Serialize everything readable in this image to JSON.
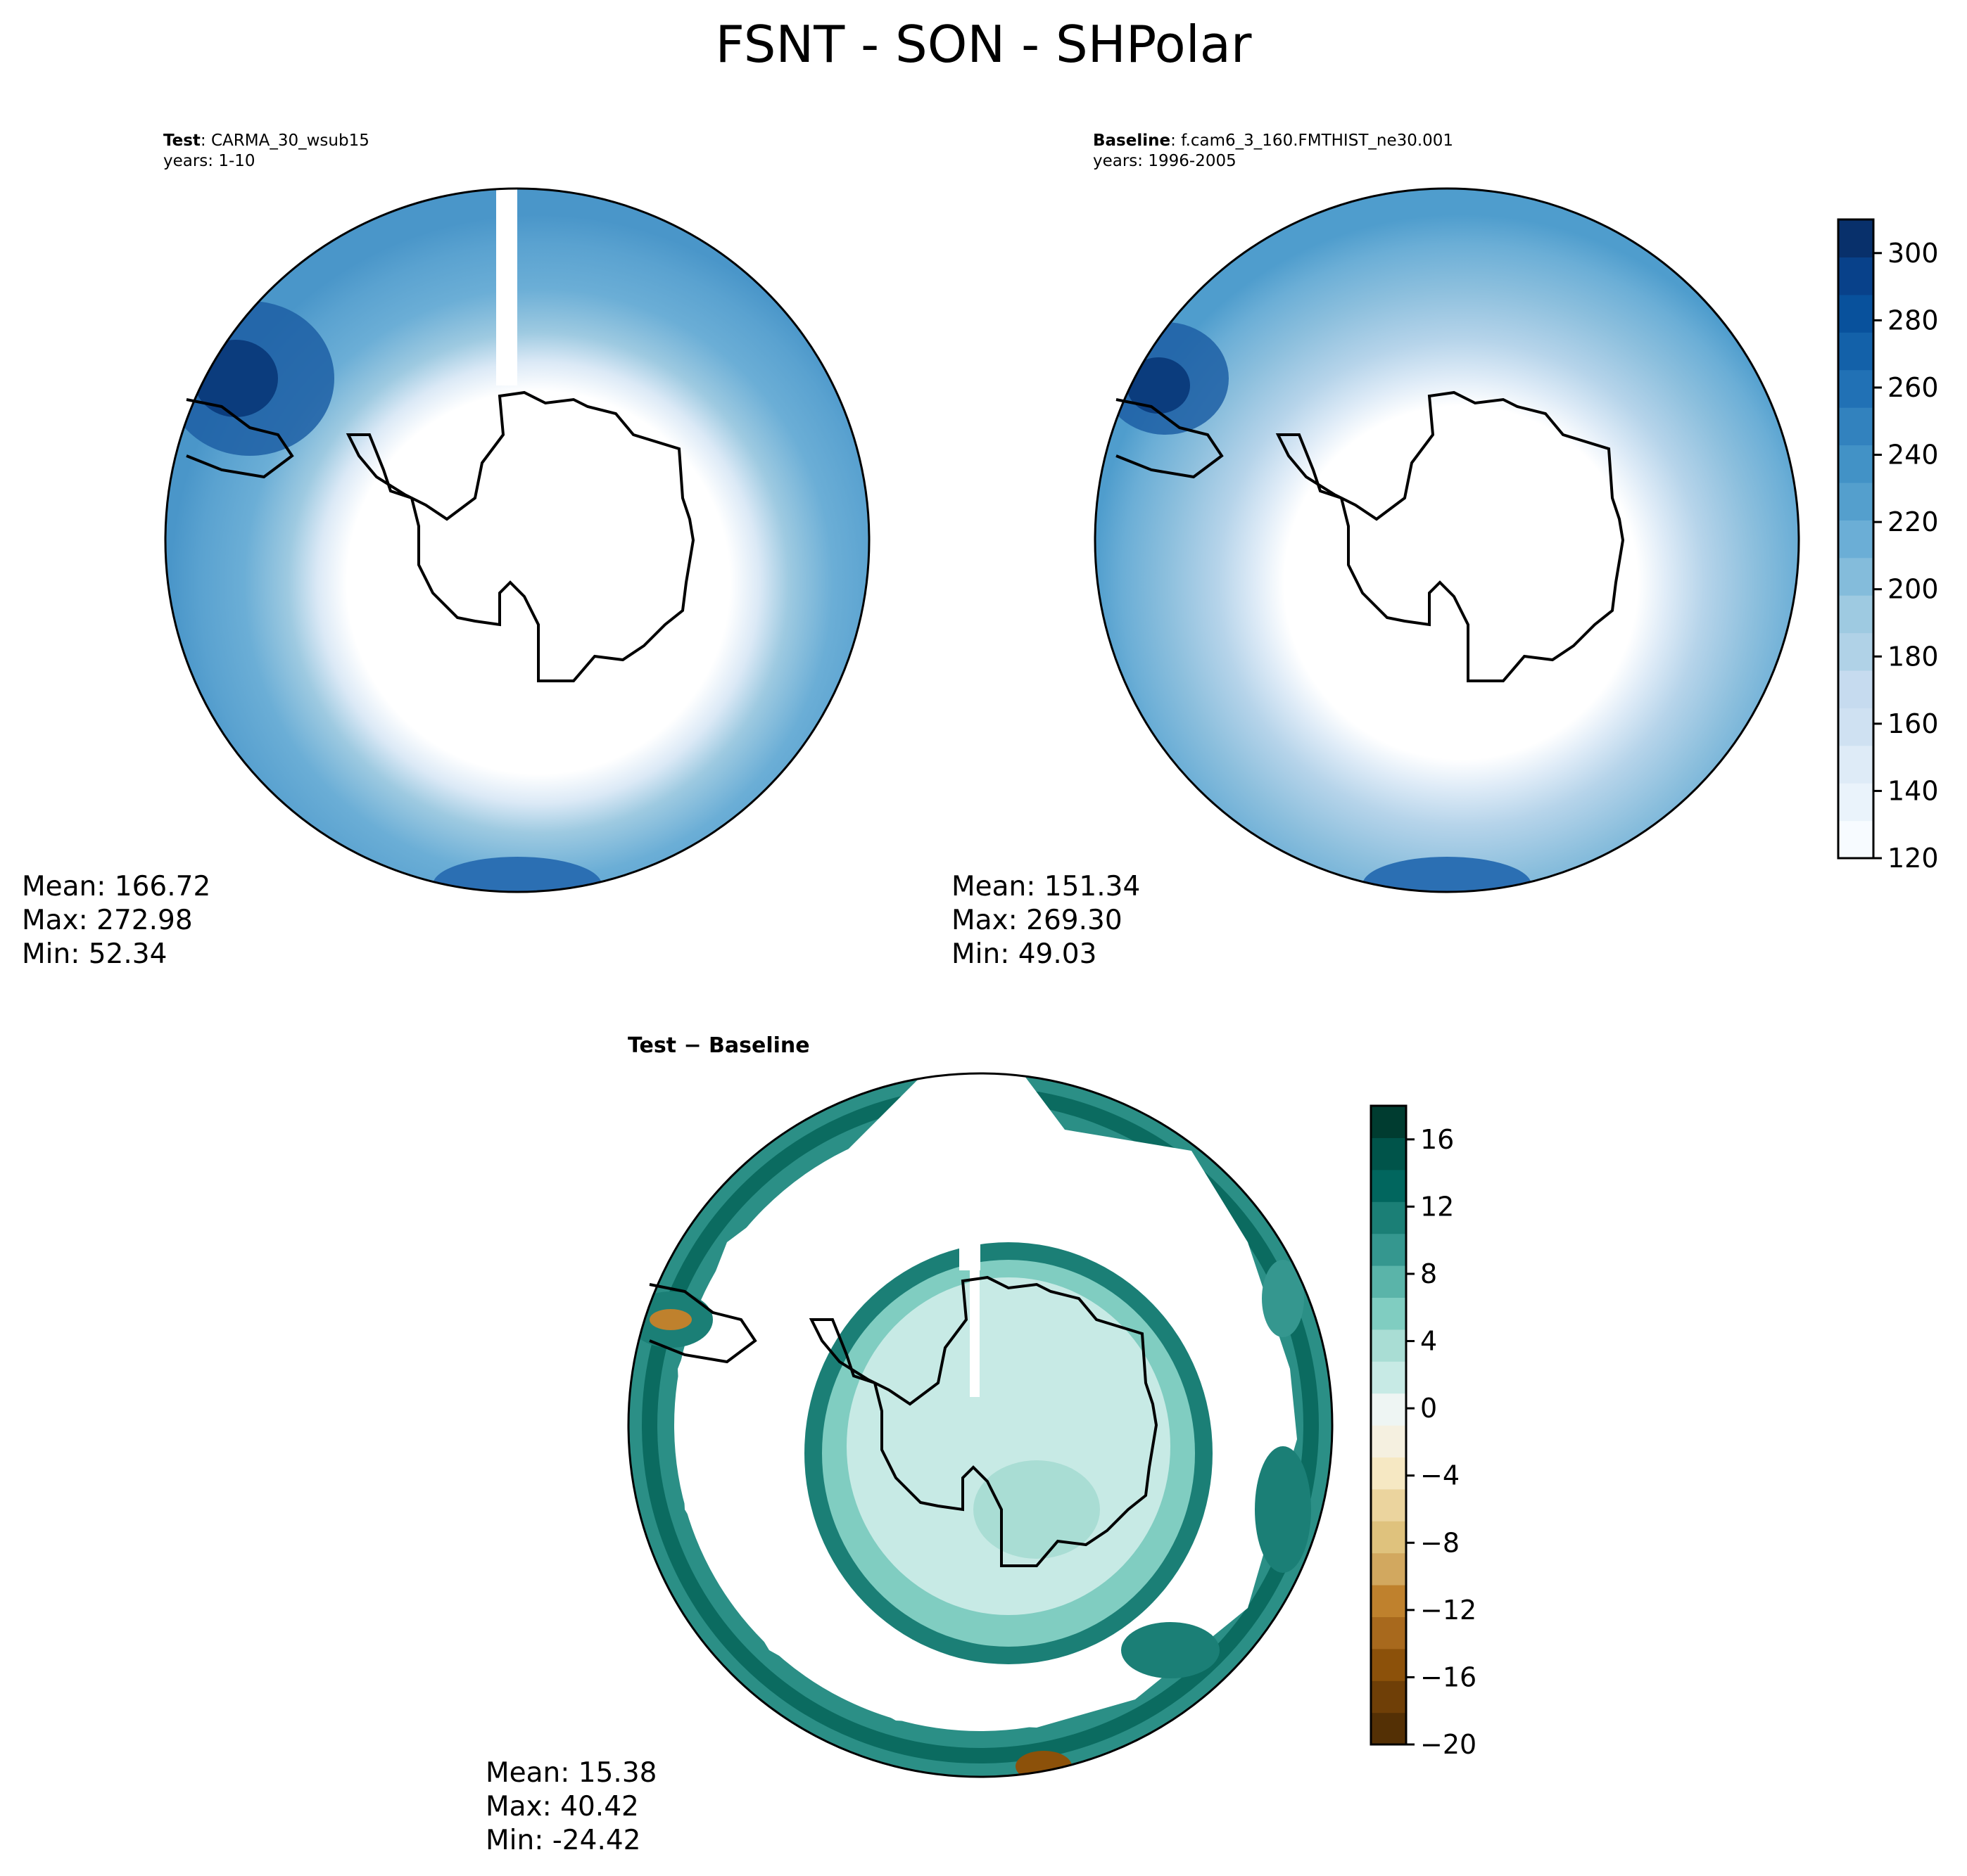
{
  "figure": {
    "title": "FSNT - SON - SHPolar"
  },
  "panels": [
    {
      "id": "test",
      "label": "Test",
      "case": "CARMA_30_wsub15",
      "years": "years: 1-10",
      "stats": {
        "mean": "Mean: 166.72",
        "max": "Max: 272.98",
        "min": "Min: 52.34"
      }
    },
    {
      "id": "baseline",
      "label": "Baseline",
      "case": "f.cam6_3_160.FMTHIST_ne30.001",
      "years": "years: 1996-2005",
      "stats": {
        "mean": "Mean: 151.34",
        "max": "Max: 269.30",
        "min": "Min: 49.03"
      }
    },
    {
      "id": "diff",
      "label": "Test − Baseline",
      "stats": {
        "mean": "Mean: 15.38",
        "max": "Max: 40.42",
        "min": "Min: -24.42"
      }
    }
  ],
  "colorbars": {
    "main": {
      "ticks": [
        "120",
        "140",
        "160",
        "180",
        "200",
        "220",
        "240",
        "260",
        "280",
        "300"
      ],
      "range": [
        120,
        310
      ],
      "colors": [
        "#f7fbff",
        "#eaf3fb",
        "#deebf7",
        "#cfe1f2",
        "#c6dbef",
        "#b0d2e7",
        "#9ecae1",
        "#84bcdb",
        "#6baed6",
        "#549fcd",
        "#4292c6",
        "#3282be",
        "#2171b5",
        "#1361a9",
        "#08519c",
        "#08418a",
        "#08306b"
      ]
    },
    "diff": {
      "ticks": [
        "−20",
        "−16",
        "−12",
        "−8",
        "−4",
        "0",
        "4",
        "8",
        "12",
        "16"
      ],
      "range": [
        -20,
        18
      ],
      "colors": [
        "#543005",
        "#6f3f07",
        "#8c510a",
        "#a8691d",
        "#bf812d",
        "#d2a85f",
        "#dfc27d",
        "#ebd49e",
        "#f6e8c3",
        "#f5f0e0",
        "#eef5f3",
        "#c7eae5",
        "#a9ddd4",
        "#80cdc1",
        "#5ab4a9",
        "#35978f",
        "#1b7f76",
        "#01665e",
        "#00544a",
        "#003c30"
      ]
    }
  },
  "chart_data": [
    {
      "type": "heatmap",
      "title": "FSNT - SON - SHPolar",
      "subtitle": "Test: CARMA_30_wsub15 years: 1-10",
      "projection": "south polar stereographic",
      "field": "FSNT",
      "season": "SON",
      "colorbar_range": [
        120,
        310
      ],
      "mean": 166.72,
      "max": 272.98,
      "min": 52.34
    },
    {
      "type": "heatmap",
      "subtitle": "Baseline: f.cam6_3_160.FMTHIST_ne30.001 years: 1996-2005",
      "projection": "south polar stereographic",
      "field": "FSNT",
      "season": "SON",
      "colorbar_range": [
        120,
        310
      ],
      "mean": 151.34,
      "max": 269.3,
      "min": 49.03
    },
    {
      "type": "heatmap",
      "subtitle": "Test − Baseline",
      "projection": "south polar stereographic",
      "colorbar_range": [
        -20,
        18
      ],
      "mean": 15.38,
      "max": 40.42,
      "min": -24.42
    }
  ]
}
